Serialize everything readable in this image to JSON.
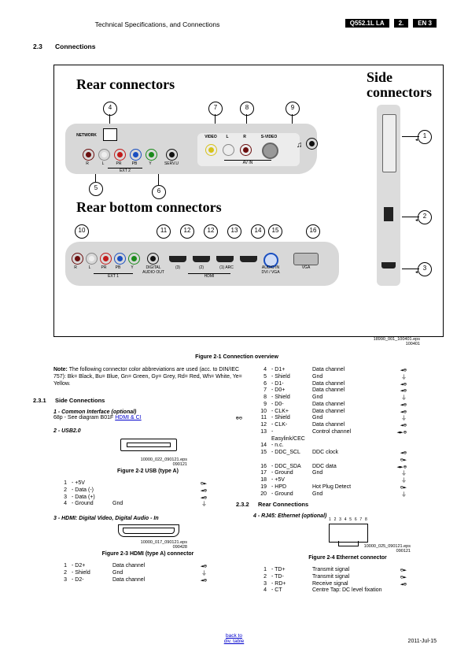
{
  "header": {
    "chapter": "Technical Specifications, and Connections",
    "model": "Q552.1L LA",
    "sec": "2.",
    "page": "EN 3"
  },
  "section": {
    "no": "2.3",
    "title": "Connections"
  },
  "figure_frame": {
    "rear_title": "Rear connectors",
    "rear_bottom_title": "Rear bottom connectors",
    "side_title_l1": "Side",
    "side_title_l2": "connectors",
    "callouts_top": [
      "4",
      "7",
      "8",
      "9"
    ],
    "callouts_mid": [
      "5",
      "6"
    ],
    "callouts_bot": [
      "10",
      "11",
      "12",
      "12",
      "13",
      "14",
      "15",
      "16"
    ],
    "callouts_side": [
      "1",
      "2",
      "3"
    ],
    "rear_labels": {
      "network": "NETWORK",
      "r": "R",
      "l": "L",
      "pr": "PR",
      "pb": "PB",
      "y": "Y",
      "serv": "SERV.U",
      "video": "VIDEO",
      "l2": "L",
      "r2": "R",
      "svideo": "S-VIDEO",
      "avin": "AV IN",
      "ext2": "EXT 2"
    },
    "bot_labels": {
      "r": "R",
      "l": "L",
      "pr": "PR",
      "pb": "PB",
      "y": "Y",
      "digaud": "DIGITAL\nAUDIO OUT",
      "h3": "(3)",
      "h2": "(2)",
      "h1": "(1) ARC",
      "hdmi": "HDMI",
      "audin": "AUDIO IN\nDVI / VGA",
      "vga": "VGA",
      "ext1": "EXT 1"
    },
    "colors": {
      "red": "#c11a1a",
      "white": "#ffffff",
      "darkred": "#6b0e0e",
      "blue": "#1a4fc1",
      "green": "#1a8a1a",
      "black": "#111",
      "yellow": "#d6c21a",
      "silver": "#bdbdbd",
      "headphone": "#2a2a2a"
    },
    "eps_ref_l1": "18990_001_100401.eps",
    "eps_ref_l2": "100401",
    "fig_caption": "Figure 2-1 Connection overview"
  },
  "note": "Note: The following connector color abbreviations are used (acc. to DIN/IEC 757): Bk= Black, Bu= Blue, Gn= Green, Gy= Grey, Rd= Red, Wh= White, Ye= Yellow.",
  "sc_heading_no": "2.3.1",
  "sc_heading": "Side Connections",
  "ci": {
    "title": "1 - Common Interface (optional)",
    "text": "68p - See diagram B01F ",
    "link": "HDMI & CI",
    "sym": "⊕⊖"
  },
  "usb": {
    "title": "2 - USB2.0",
    "eps_l1": "10000_022_090121.eps",
    "eps_l2": "090121",
    "caption": "Figure 2-2  USB (type A)",
    "pins": [
      {
        "n": "1",
        "s": "- +5V",
        "d": "",
        "i": "⊖►"
      },
      {
        "n": "2",
        "s": "- Data (-)",
        "d": "",
        "i": "◄⊕"
      },
      {
        "n": "3",
        "s": "- Data (+)",
        "d": "",
        "i": "◄⊕"
      },
      {
        "n": "4",
        "s": "- Ground",
        "d": "Gnd",
        "i": "⏚"
      }
    ]
  },
  "hdmi": {
    "title": "3 - HDMI: Digital Video, Digital Audio - In",
    "eps_l1": "10000_017_090121.eps",
    "eps_l2": "090428",
    "caption": "Figure 2-3  HDMI (type A) connector",
    "pins_left": [
      {
        "n": "1",
        "s": "- D2+",
        "d": "Data channel",
        "i": "◄⊕"
      },
      {
        "n": "2",
        "s": "- Shield",
        "d": "Gnd",
        "i": "⏚"
      },
      {
        "n": "3",
        "s": "- D2-",
        "d": "Data channel",
        "i": "◄⊕"
      }
    ],
    "pins_right": [
      {
        "n": "4",
        "s": "- D1+",
        "d": "Data channel",
        "i": "◄⊕"
      },
      {
        "n": "5",
        "s": "- Shield",
        "d": "Gnd",
        "i": "⏚"
      },
      {
        "n": "6",
        "s": "- D1-",
        "d": "Data channel",
        "i": "◄⊕"
      },
      {
        "n": "7",
        "s": "- D0+",
        "d": "Data channel",
        "i": "◄⊕"
      },
      {
        "n": "8",
        "s": "- Shield",
        "d": "Gnd",
        "i": "⏚"
      },
      {
        "n": "9",
        "s": "- D0-",
        "d": "Data channel",
        "i": "◄⊕"
      },
      {
        "n": "10",
        "s": "- CLK+",
        "d": "Data channel",
        "i": "◄⊕"
      },
      {
        "n": "11",
        "s": "- Shield",
        "d": "Gnd",
        "i": "⏚"
      },
      {
        "n": "12",
        "s": "- CLK-",
        "d": "Data channel",
        "i": "◄⊕"
      },
      {
        "n": "13",
        "s": "- Easylink/CEC",
        "d": "Control channel",
        "i": "◄►⊕"
      },
      {
        "n": "14",
        "s": "- n.c.",
        "d": "",
        "i": ""
      },
      {
        "n": "15",
        "s": "- DDC_SCL",
        "d": "DDC clock",
        "i": "◄⊕ ⊖►"
      },
      {
        "n": "16",
        "s": "- DDC_SDA",
        "d": "DDC data",
        "i": "◄►⊕"
      },
      {
        "n": "17",
        "s": "- Ground",
        "d": "Gnd",
        "i": "⏚"
      },
      {
        "n": "18",
        "s": "- +5V",
        "d": "",
        "i": "⏚"
      },
      {
        "n": "19",
        "s": "- HPD",
        "d": "Hot Plug Detect",
        "i": "⊖►"
      },
      {
        "n": "20",
        "s": "- Ground",
        "d": "Gnd",
        "i": "⏚"
      }
    ]
  },
  "rc_heading_no": "2.3.2",
  "rc_heading": "Rear Connections",
  "eth": {
    "title": "4 - RJ45: Ethernet (optional)",
    "pinlabels": "1 2 3 4 5 6 7 8",
    "eps_l1": "10000_025_090121.eps",
    "eps_l2": "090121",
    "caption": "Figure 2-4 Ethernet connector",
    "pins": [
      {
        "n": "1",
        "s": "- TD+",
        "d": "Transmit signal",
        "i": "⊖►"
      },
      {
        "n": "2",
        "s": "- TD-",
        "d": "Transmit signal",
        "i": "⊖►"
      },
      {
        "n": "3",
        "s": "- RD+",
        "d": "Receive signal",
        "i": "◄⊕"
      },
      {
        "n": "4",
        "s": "- CT",
        "d": "Centre Tap: DC level fixation",
        "i": ""
      }
    ]
  },
  "footer": {
    "link1": "back to",
    "link2": "div. table",
    "date": "2011-Jul-15"
  }
}
